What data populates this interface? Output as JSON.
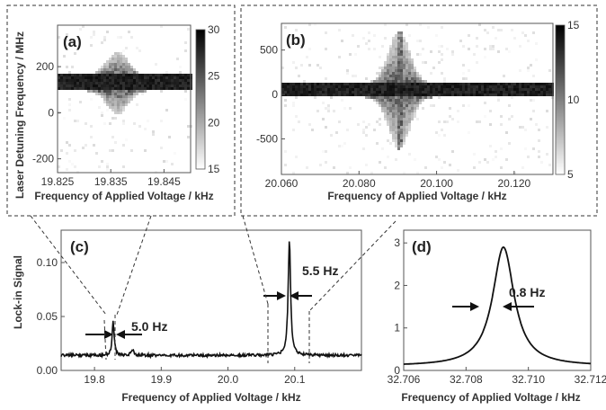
{
  "chart_data": [
    {
      "panel": "(a)",
      "type": "heatmap",
      "xlabel": "Frequency of Applied Voltage / kHz",
      "ylabel": "Laser Detuning Frequency / MHz",
      "xlim": [
        19.825,
        19.85
      ],
      "ylim": [
        -260,
        380
      ],
      "x_ticks": [
        "19.825",
        "19.835",
        "19.845"
      ],
      "y_ticks": [
        "200",
        "0",
        "-200"
      ],
      "colorbar_ticks": [
        "30",
        "25",
        "20",
        "15"
      ],
      "colorbar_range": [
        15,
        30
      ],
      "band_center_mhz": 130,
      "resonance_khz": 19.836
    },
    {
      "panel": "(b)",
      "type": "heatmap",
      "xlabel": "Frequency of Applied Voltage / kHz",
      "ylabel": "",
      "xlim": [
        20.06,
        20.13
      ],
      "ylim": [
        -900,
        800
      ],
      "x_ticks": [
        "20.060",
        "20.080",
        "20.100",
        "20.120"
      ],
      "y_ticks": [
        "500",
        "0",
        "-500"
      ],
      "colorbar_ticks": [
        "15",
        "10",
        "5"
      ],
      "colorbar_range": [
        5,
        15
      ],
      "band_center_mhz": 50,
      "resonance_khz": 20.09
    },
    {
      "panel": "(c)",
      "type": "line",
      "xlabel": "Frequency of Applied Voltage / kHz",
      "ylabel": "Lock-in Signal",
      "xlim": [
        19.75,
        20.2
      ],
      "ylim": [
        0,
        0.13
      ],
      "x_ticks": [
        "19.8",
        "19.9",
        "20.0",
        "20.1"
      ],
      "y_ticks": [
        "0.00",
        "0.05",
        "0.10"
      ],
      "peaks": [
        {
          "x": 19.828,
          "height": 0.046
        },
        {
          "x": 19.857,
          "height": 0.019
        },
        {
          "x": 20.092,
          "height": 0.12
        }
      ],
      "baseline": 0.014,
      "annotations": [
        "5.0 Hz",
        "5.5 Hz"
      ]
    },
    {
      "panel": "(d)",
      "type": "line",
      "xlabel": "Frequency of Applied Voltage / kHz",
      "ylabel": "",
      "xlim": [
        32.706,
        32.712
      ],
      "ylim": [
        0,
        3.3
      ],
      "x_ticks": [
        "32.706",
        "32.708",
        "32.710",
        "32.712"
      ],
      "y_ticks": [
        "0",
        "1",
        "2",
        "3"
      ],
      "peak": {
        "x": 32.7092,
        "height": 2.9
      },
      "annotations": [
        "0.8 Hz"
      ]
    }
  ]
}
